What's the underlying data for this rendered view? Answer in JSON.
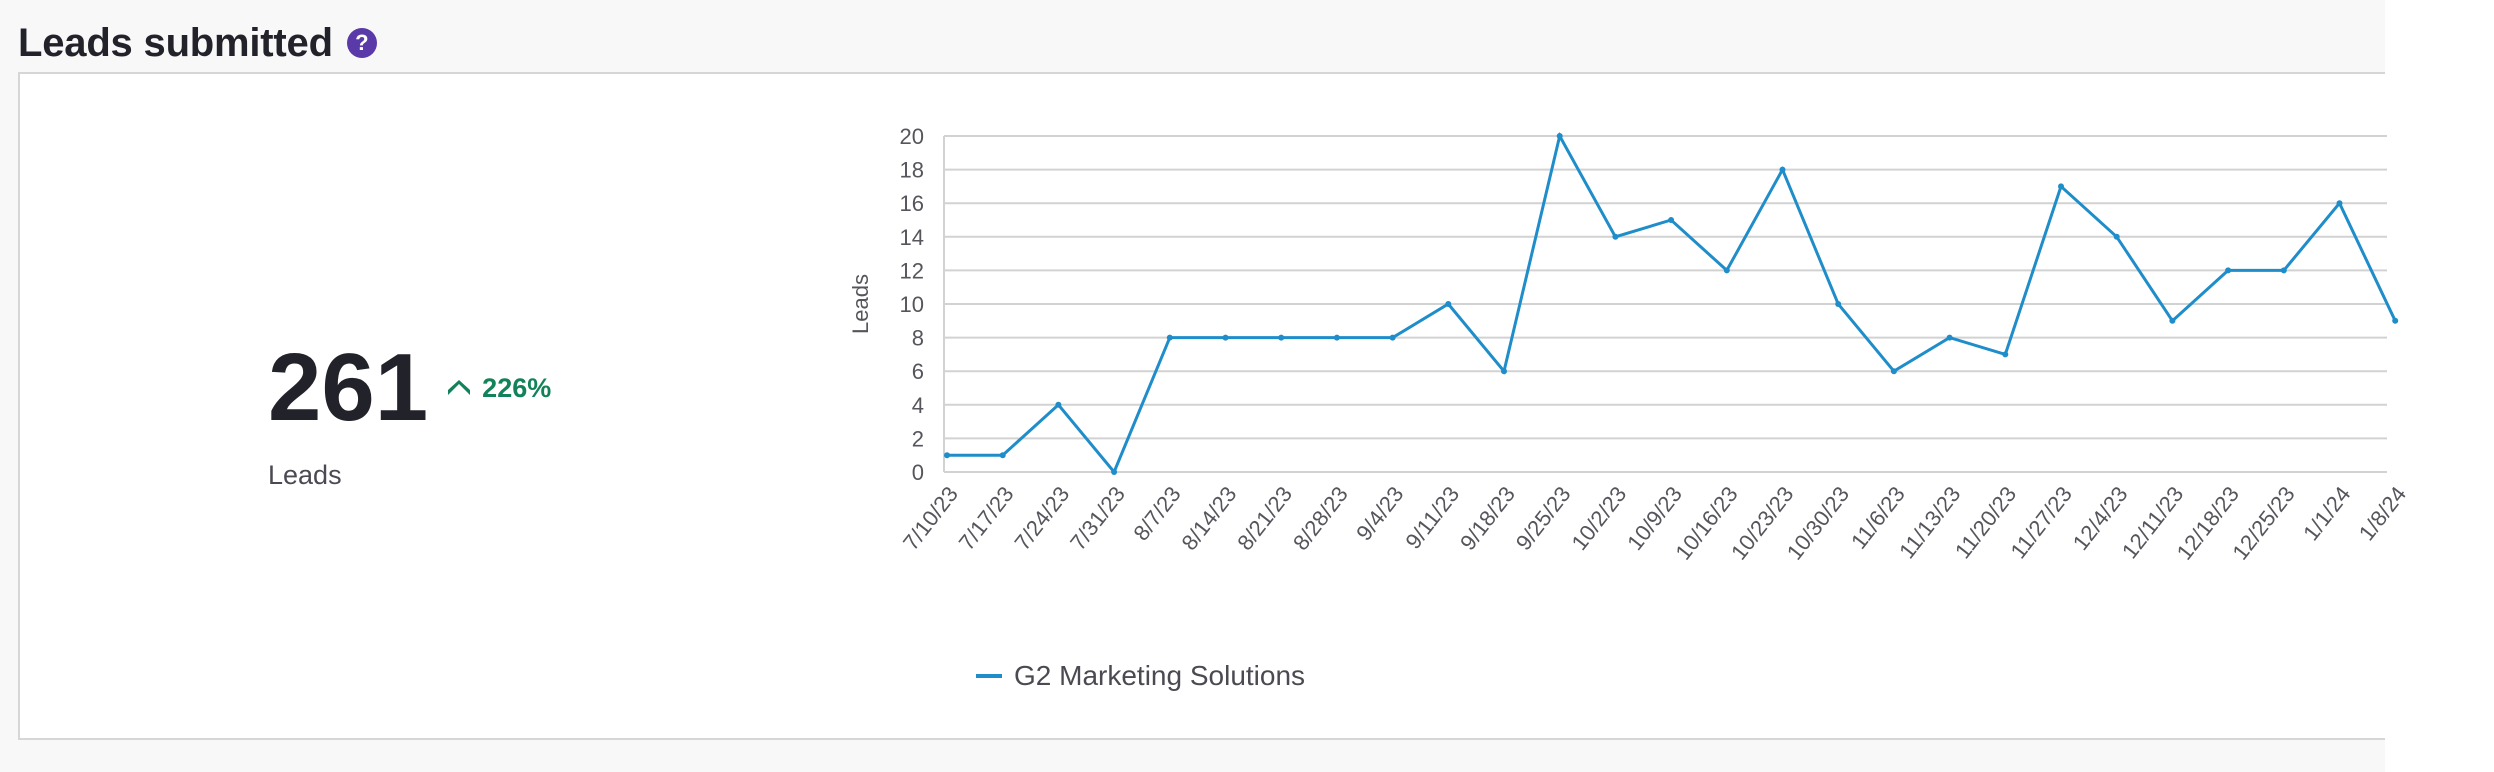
{
  "widget": {
    "title": "Leads submitted",
    "help_icon": "question-circle-icon",
    "help_glyph": "?"
  },
  "kpi": {
    "value": "261",
    "change": "226%",
    "change_icon": "chevron-up-icon",
    "label": "Leads"
  },
  "colors": {
    "series": "#1f8dc9",
    "positive": "#12825a",
    "help": "#5a39a8",
    "grid": "#d2d2d2"
  },
  "chart_data": {
    "type": "line",
    "title": "",
    "xlabel": "",
    "ylabel": "Leads",
    "ylim": [
      0,
      20
    ],
    "yticks": [
      0,
      2,
      4,
      6,
      8,
      10,
      12,
      14,
      16,
      18,
      20
    ],
    "grid": true,
    "legend": "bottom",
    "categories": [
      "7/10/23",
      "7/17/23",
      "7/24/23",
      "7/31/23",
      "8/7/23",
      "8/14/23",
      "8/21/23",
      "8/28/23",
      "9/4/23",
      "9/11/23",
      "9/18/23",
      "9/25/23",
      "10/2/23",
      "10/9/23",
      "10/16/23",
      "10/23/23",
      "10/30/23",
      "11/6/23",
      "11/13/23",
      "11/20/23",
      "11/27/23",
      "12/4/23",
      "12/11/23",
      "12/18/23",
      "12/25/23",
      "1/1/24",
      "1/8/24"
    ],
    "series": [
      {
        "name": "G2 Marketing Solutions",
        "values": [
          1,
          1,
          4,
          0,
          8,
          8,
          8,
          8,
          8,
          10,
          6,
          20,
          14,
          15,
          12,
          18,
          10,
          6,
          8,
          7,
          17,
          14,
          9,
          12,
          12,
          16,
          9
        ]
      }
    ]
  }
}
